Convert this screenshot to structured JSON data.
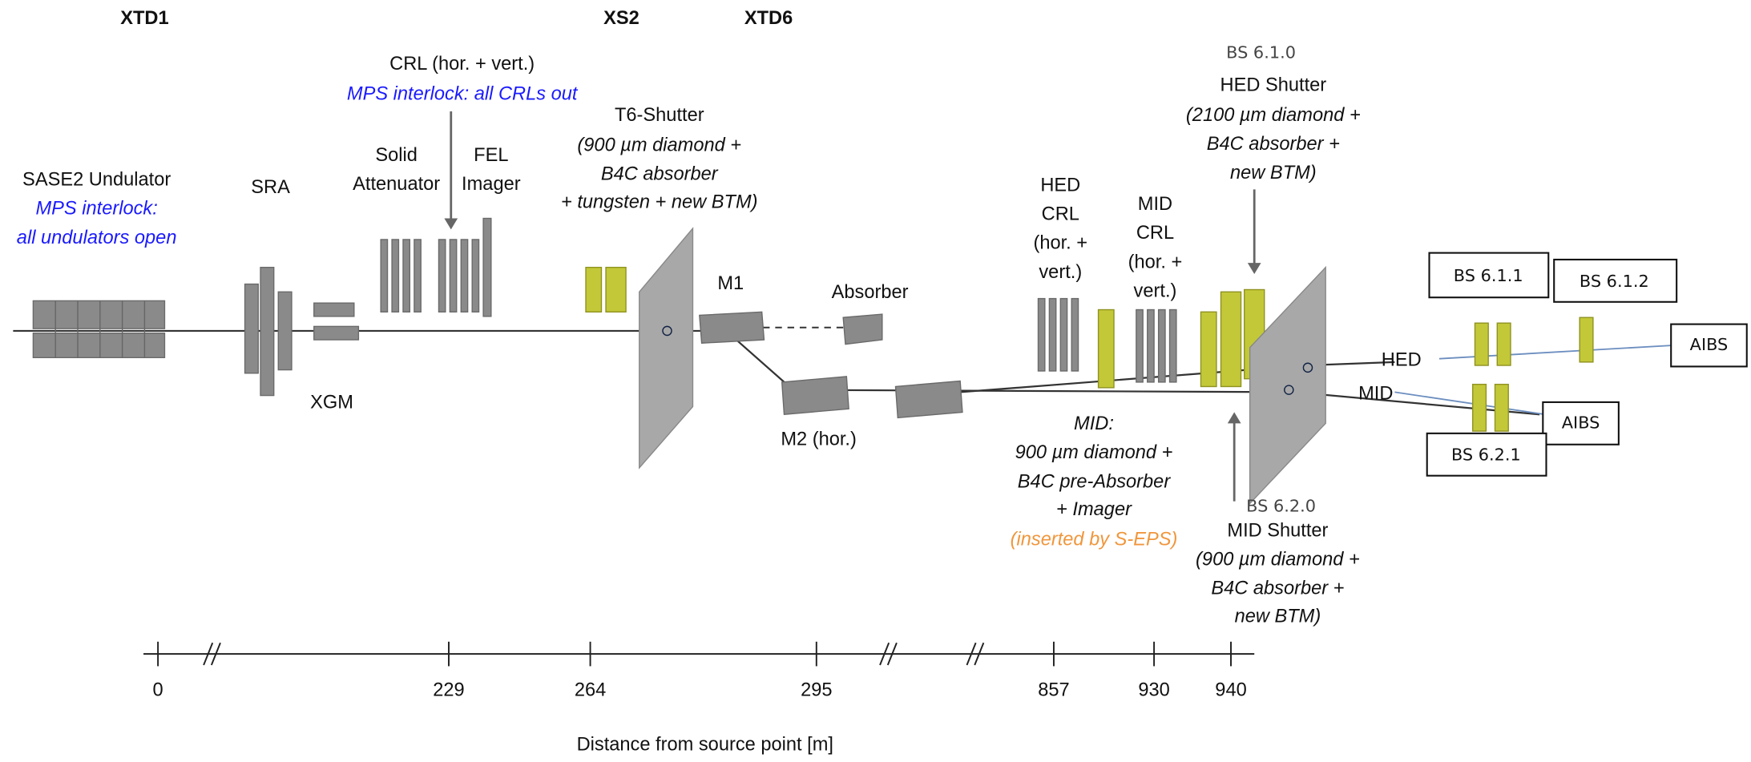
{
  "sections": [
    "XTD1",
    "XS2",
    "XTD6"
  ],
  "undulator": {
    "name": "SASE2 Undulator",
    "note": [
      "MPS interlock:",
      "all undulators open"
    ]
  },
  "sra": "SRA",
  "xgm": "XGM",
  "solid_attenuator": [
    "Solid",
    "Attenuator"
  ],
  "fel_imager": [
    "FEL",
    "Imager"
  ],
  "crl": {
    "name": "CRL (hor. + vert.)",
    "note": "MPS interlock: all CRLs out"
  },
  "t6_shutter": {
    "name": "T6-Shutter",
    "note": [
      "(900 µm diamond +",
      "B4C absorber",
      "+ tungsten + new BTM)"
    ]
  },
  "m1": "M1",
  "absorber": "Absorber",
  "m2": "M2 (hor.)",
  "hed_crl": [
    "HED",
    "CRL",
    "(hor. +",
    "vert.)"
  ],
  "mid_crl": [
    "MID",
    "CRL",
    "(hor. +",
    "vert.)"
  ],
  "hed_shutter": {
    "id": "BS 6.1.0",
    "name": "HED Shutter",
    "note": [
      "(2100 µm diamond +",
      "B4C absorber +",
      "new BTM)"
    ]
  },
  "mid_shutter": {
    "id": "BS 6.2.0",
    "name": "MID Shutter",
    "note": [
      "(900 µm diamond +",
      "B4C absorber +",
      "new BTM)"
    ]
  },
  "mid_absorber": {
    "lines": [
      "MID:",
      "900 µm diamond +",
      "B4C pre-Absorber",
      "+ Imager"
    ],
    "note": "(inserted by S-EPS)"
  },
  "branches": [
    "HED",
    "MID"
  ],
  "boxes": [
    "BS 6.1.1",
    "BS 6.1.2",
    "AIBS",
    "AIBS",
    "BS 6.2.1"
  ],
  "axis": {
    "ticks": [
      0,
      229,
      264,
      295,
      857,
      930,
      940
    ],
    "label": "Distance from source point [m]"
  }
}
